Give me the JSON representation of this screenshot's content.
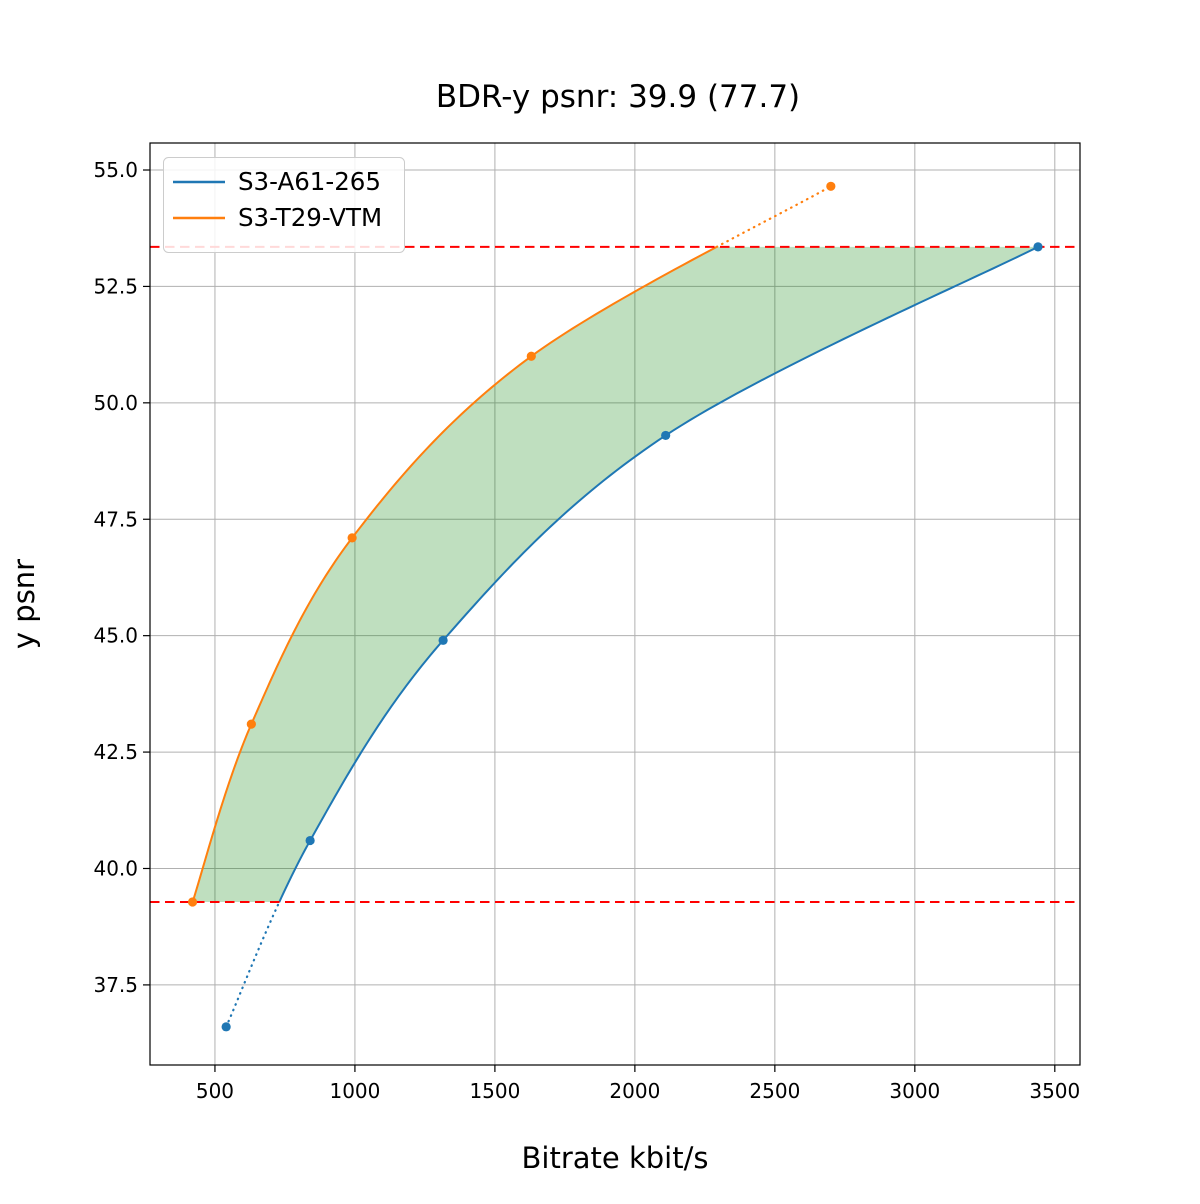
{
  "chart_data": {
    "type": "line",
    "title": "BDR-y psnr: 39.9 (77.7)",
    "xlabel": "Bitrate kbit/s",
    "ylabel": "y psnr",
    "xlim": [
      268,
      3590
    ],
    "ylim": [
      35.78,
      55.58
    ],
    "grid": true,
    "legend_position": "upper left",
    "x_ticks": [
      500,
      1000,
      1500,
      2000,
      2500,
      3000,
      3500
    ],
    "x_tick_labels": [
      "500",
      "1000",
      "1500",
      "2000",
      "2500",
      "3000",
      "3500"
    ],
    "y_ticks": [
      37.5,
      40.0,
      42.5,
      45.0,
      47.5,
      50.0,
      52.5,
      55.0
    ],
    "y_tick_labels": [
      "37.5",
      "40.0",
      "42.5",
      "45.0",
      "47.5",
      "50.0",
      "52.5",
      "55.0"
    ],
    "series": [
      {
        "name": "S3-A61-265",
        "color": "#1f77b4",
        "x": [
          540,
          840,
          1315,
          2110,
          3440
        ],
        "y": [
          36.6,
          40.6,
          44.9,
          49.3,
          53.35
        ],
        "note": "segment below lower ref line drawn dotted"
      },
      {
        "name": "S3-T29-VTM",
        "color": "#ff7f0e",
        "x": [
          420,
          630,
          990,
          1630,
          2700
        ],
        "y": [
          39.28,
          43.1,
          47.1,
          51.0,
          54.65
        ],
        "note": "segment above upper ref line drawn dotted"
      }
    ],
    "ref_lines": [
      {
        "name": "upper",
        "value": 53.35,
        "color": "#ff0000",
        "style": "dashed"
      },
      {
        "name": "lower",
        "value": 39.28,
        "color": "#ff0000",
        "style": "dashed"
      }
    ],
    "fill_between": {
      "color": "#008000",
      "opacity": 0.25
    },
    "grid_color": "#b0b0b0"
  }
}
